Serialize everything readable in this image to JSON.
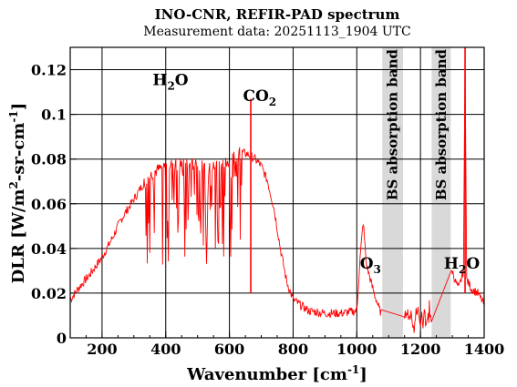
{
  "chart_data": {
    "type": "line",
    "title": "INO-CNR, REFIR-PAD spectrum",
    "subtitle": "Measurement data: 20251113_1904 UTC",
    "xlabel": "Wavenumber [cm",
    "xlabel_sup": "-1",
    "xlabel_end": "]",
    "ylabel_parts": [
      "DLR [W/m",
      "2",
      "-sr-cm",
      "-1",
      "]"
    ],
    "xlim": [
      100,
      1400
    ],
    "ylim": [
      0,
      0.13
    ],
    "x_ticks": [
      200,
      400,
      600,
      800,
      1000,
      1200,
      1400
    ],
    "x_tick_labels": [
      "200",
      "400",
      "600",
      "800",
      "1000",
      "1200",
      "1400"
    ],
    "y_ticks": [
      0,
      0.02,
      0.04,
      0.06,
      0.08,
      0.1,
      0.12
    ],
    "y_tick_labels": [
      "0",
      "0.02",
      "0.04",
      "0.06",
      "0.08",
      "0.1",
      "0.12"
    ],
    "grid": true,
    "series": [
      {
        "color": "#ff0000",
        "x": [
          100,
          130,
          160,
          200,
          230,
          260,
          300,
          330,
          360,
          400,
          430,
          460,
          500,
          530,
          560,
          600,
          620,
          640,
          660,
          680,
          700,
          720,
          740,
          760,
          780,
          800,
          850,
          900,
          950,
          1000,
          1010,
          1020,
          1030,
          1050,
          1070,
          1080,
          1160,
          1180,
          1200,
          1220,
          1240,
          1295,
          1300,
          1310,
          1320,
          1335,
          1340,
          1345,
          1360,
          1380,
          1400
        ],
        "y": [
          0.017,
          0.023,
          0.028,
          0.036,
          0.044,
          0.053,
          0.062,
          0.069,
          0.074,
          0.077,
          0.078,
          0.077,
          0.078,
          0.075,
          0.077,
          0.079,
          0.082,
          0.083,
          0.082,
          0.08,
          0.077,
          0.07,
          0.058,
          0.04,
          0.025,
          0.017,
          0.012,
          0.011,
          0.011,
          0.012,
          0.035,
          0.052,
          0.033,
          0.022,
          0.013,
          0.01,
          0.011,
          0.007,
          0.009,
          0.008,
          0.012,
          0.028,
          0.03,
          0.025,
          0.022,
          0.03,
          0.13,
          0.026,
          0.022,
          0.02,
          0.015
        ]
      }
    ],
    "spikes": [
      {
        "x": 667,
        "y": 0.107
      },
      {
        "x": 1340,
        "y": 0.13
      }
    ],
    "shaded_bands": [
      {
        "x0": 1080,
        "x1": 1145,
        "label": "BS absorption band",
        "color": "#d9d9d9"
      },
      {
        "x0": 1235,
        "x1": 1295,
        "label": "BS absorption band",
        "color": "#d9d9d9"
      }
    ],
    "annotations": [
      {
        "base": "H",
        "sub": "2",
        "rest": "O",
        "x": 415,
        "y": 0.113
      },
      {
        "base": "CO",
        "sub": "2",
        "rest": "",
        "x": 695,
        "y": 0.106
      },
      {
        "base": "O",
        "sub": "3",
        "rest": "",
        "x": 1043,
        "y": 0.031
      },
      {
        "base": "H",
        "sub": "2",
        "rest": "O",
        "x": 1330,
        "y": 0.031
      }
    ]
  }
}
